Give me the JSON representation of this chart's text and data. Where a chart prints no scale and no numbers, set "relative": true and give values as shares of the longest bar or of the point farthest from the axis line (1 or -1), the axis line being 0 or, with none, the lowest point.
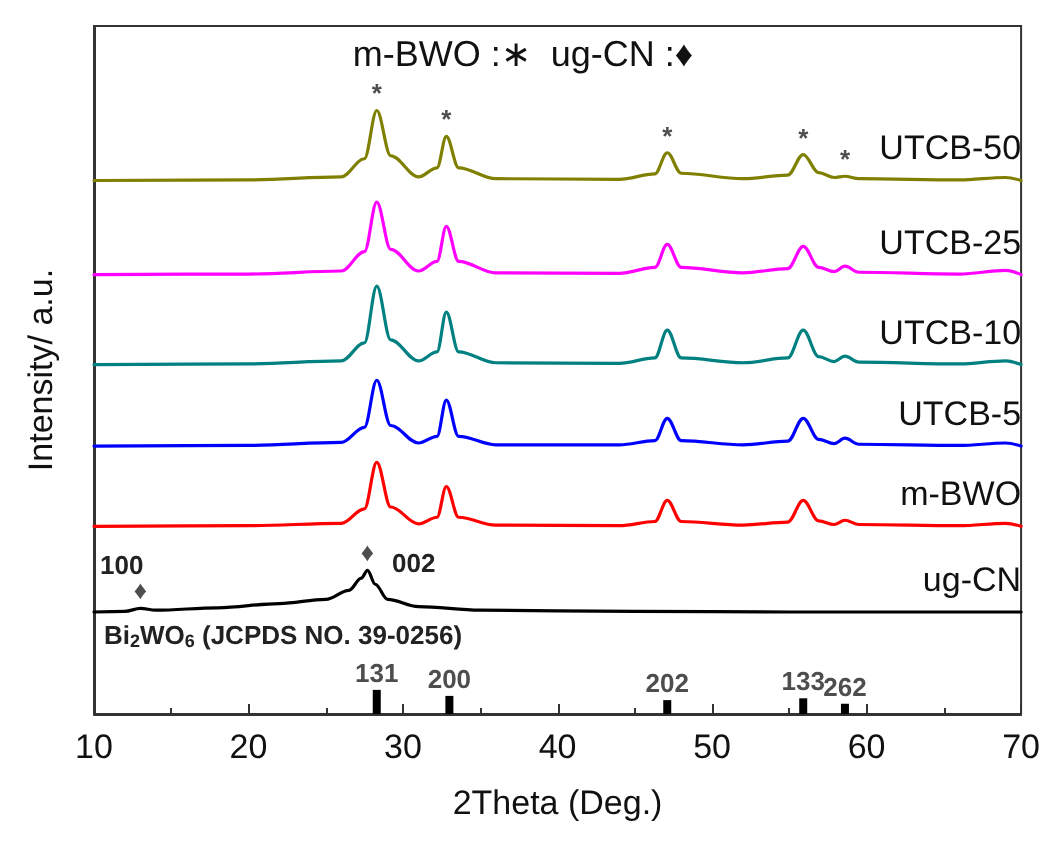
{
  "chart_data": {
    "type": "line",
    "relative": true,
    "xlabel": "2Theta (Deg.)",
    "ylabel": "Intensity/ a.u.",
    "xlim": [
      10,
      70
    ],
    "xticks": [
      10,
      20,
      30,
      40,
      50,
      60,
      70
    ],
    "x": [
      10,
      20,
      26,
      27.5,
      28.3,
      29.2,
      31,
      32.2,
      32.8,
      33.6,
      36,
      44,
      46.3,
      47.1,
      48,
      52,
      54.9,
      55.9,
      56.9,
      57.9,
      58.6,
      59.5,
      66,
      69,
      70
    ],
    "series": [
      {
        "name": "UTCB-50",
        "color": "#808000",
        "values": [
          0.884,
          0.885,
          0.89,
          0.92,
          1.0,
          0.925,
          0.89,
          0.905,
          0.957,
          0.905,
          0.887,
          0.886,
          0.895,
          0.93,
          0.896,
          0.887,
          0.893,
          0.927,
          0.897,
          0.889,
          0.891,
          0.887,
          0.885,
          0.889,
          0.884
        ]
      },
      {
        "name": "UTCB-25",
        "color": "#ff00ff",
        "values": [
          0.728,
          0.729,
          0.734,
          0.766,
          0.848,
          0.77,
          0.734,
          0.75,
          0.808,
          0.75,
          0.731,
          0.73,
          0.74,
          0.778,
          0.74,
          0.731,
          0.738,
          0.775,
          0.74,
          0.733,
          0.742,
          0.732,
          0.729,
          0.735,
          0.728
        ]
      },
      {
        "name": "UTCB-10",
        "color": "#008080",
        "values": [
          0.579,
          0.58,
          0.585,
          0.615,
          0.709,
          0.62,
          0.585,
          0.6,
          0.666,
          0.6,
          0.582,
          0.581,
          0.59,
          0.636,
          0.59,
          0.582,
          0.59,
          0.636,
          0.592,
          0.584,
          0.593,
          0.583,
          0.58,
          0.585,
          0.579
        ]
      },
      {
        "name": "UTCB-5",
        "color": "#0000ff",
        "values": [
          0.444,
          0.445,
          0.45,
          0.475,
          0.553,
          0.478,
          0.449,
          0.46,
          0.52,
          0.46,
          0.446,
          0.446,
          0.453,
          0.49,
          0.453,
          0.446,
          0.452,
          0.49,
          0.455,
          0.448,
          0.457,
          0.447,
          0.445,
          0.449,
          0.444
        ]
      },
      {
        "name": "m-BWO",
        "color": "#ff0000",
        "values": [
          0.311,
          0.312,
          0.316,
          0.34,
          0.417,
          0.343,
          0.315,
          0.326,
          0.377,
          0.326,
          0.313,
          0.312,
          0.319,
          0.354,
          0.319,
          0.313,
          0.318,
          0.354,
          0.32,
          0.314,
          0.321,
          0.314,
          0.312,
          0.316,
          0.311
        ]
      },
      {
        "name": "ug-CN",
        "color": "#000000",
        "x": [
          10,
          12,
          13,
          14,
          18,
          22,
          25,
          26.5,
          27.3,
          27.7,
          28.2,
          29,
          31,
          35,
          45,
          55,
          70
        ],
        "values": [
          0.169,
          0.17,
          0.175,
          0.172,
          0.176,
          0.183,
          0.19,
          0.205,
          0.225,
          0.238,
          0.215,
          0.19,
          0.178,
          0.172,
          0.17,
          0.169,
          0.169
        ]
      },
      {
        "type": "bar",
        "color": "#000000",
        "x": [
          28.3,
          33.0,
          47.1,
          55.9,
          58.6
        ],
        "values": [
          0.04,
          0.03,
          0.023,
          0.026,
          0.017
        ]
      }
    ],
    "annotations": [
      "m-BWO :∗  ug-CN :♦",
      {
        "text": "*",
        "x": 28.3,
        "y": 1.0
      },
      {
        "text": "*",
        "x": 32.8,
        "y": 0.957
      },
      {
        "text": "*",
        "x": 47.1,
        "y": 0.93
      },
      {
        "text": "*",
        "x": 55.9,
        "y": 0.927
      },
      {
        "text": "*",
        "x": 58.6,
        "y": 0.891
      },
      {
        "text": "♦",
        "x": 13,
        "y": 0.178
      },
      "100",
      {
        "text": "♦",
        "x": 27.7,
        "y": 0.24
      },
      "002",
      "Bi$_{2}$WO$_{6}$ (JCPDS NO. 39-0256)",
      {
        "text": "131",
        "x": 28.3,
        "y": 0.04
      },
      {
        "text": "200",
        "x": 33.0,
        "y": 0.03
      },
      {
        "text": "202",
        "x": 47.1,
        "y": 0.023
      },
      {
        "text": "133",
        "x": 55.9,
        "y": 0.026
      },
      {
        "text": "262",
        "x": 58.6,
        "y": 0.017
      }
    ]
  }
}
